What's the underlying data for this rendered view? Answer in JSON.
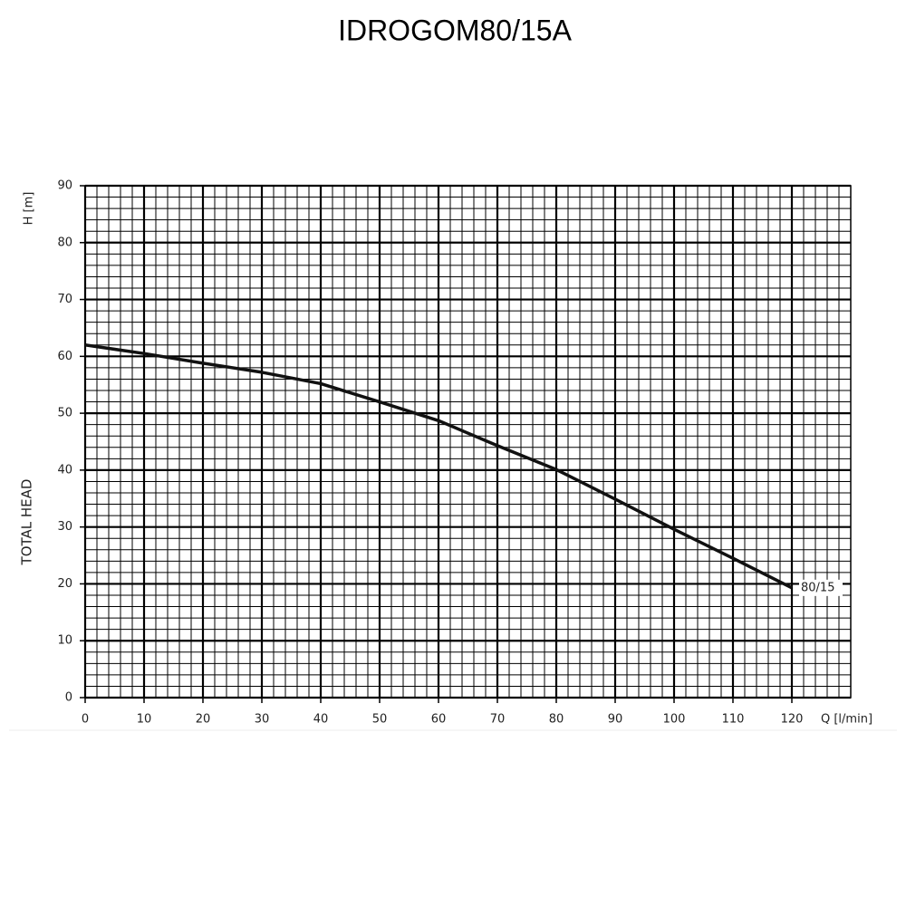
{
  "chart_data": {
    "type": "line",
    "title": "IDROGOM80/15A",
    "y_label_unit": "H [m]",
    "y_label": "TOTAL HEAD",
    "x_label": "Q [l/min]",
    "x": [
      0,
      10,
      20,
      30,
      40,
      50,
      60,
      70,
      80,
      90,
      100,
      110,
      120
    ],
    "series": [
      {
        "name": "80/15",
        "color": "#111111",
        "values": [
          62,
          60.5,
          58.8,
          57.2,
          55.2,
          52,
          48.7,
          44.3,
          40.1,
          34.9,
          29.6,
          24.5,
          19.3
        ]
      }
    ],
    "xlim": [
      0,
      130
    ],
    "xticks": [
      0,
      10,
      20,
      30,
      40,
      50,
      60,
      70,
      80,
      90,
      100,
      110,
      120
    ],
    "ylim": [
      0,
      90
    ],
    "yticks": [
      0,
      10,
      20,
      30,
      40,
      50,
      60,
      70,
      80,
      90
    ],
    "grid": true,
    "minor_grid": 5
  }
}
